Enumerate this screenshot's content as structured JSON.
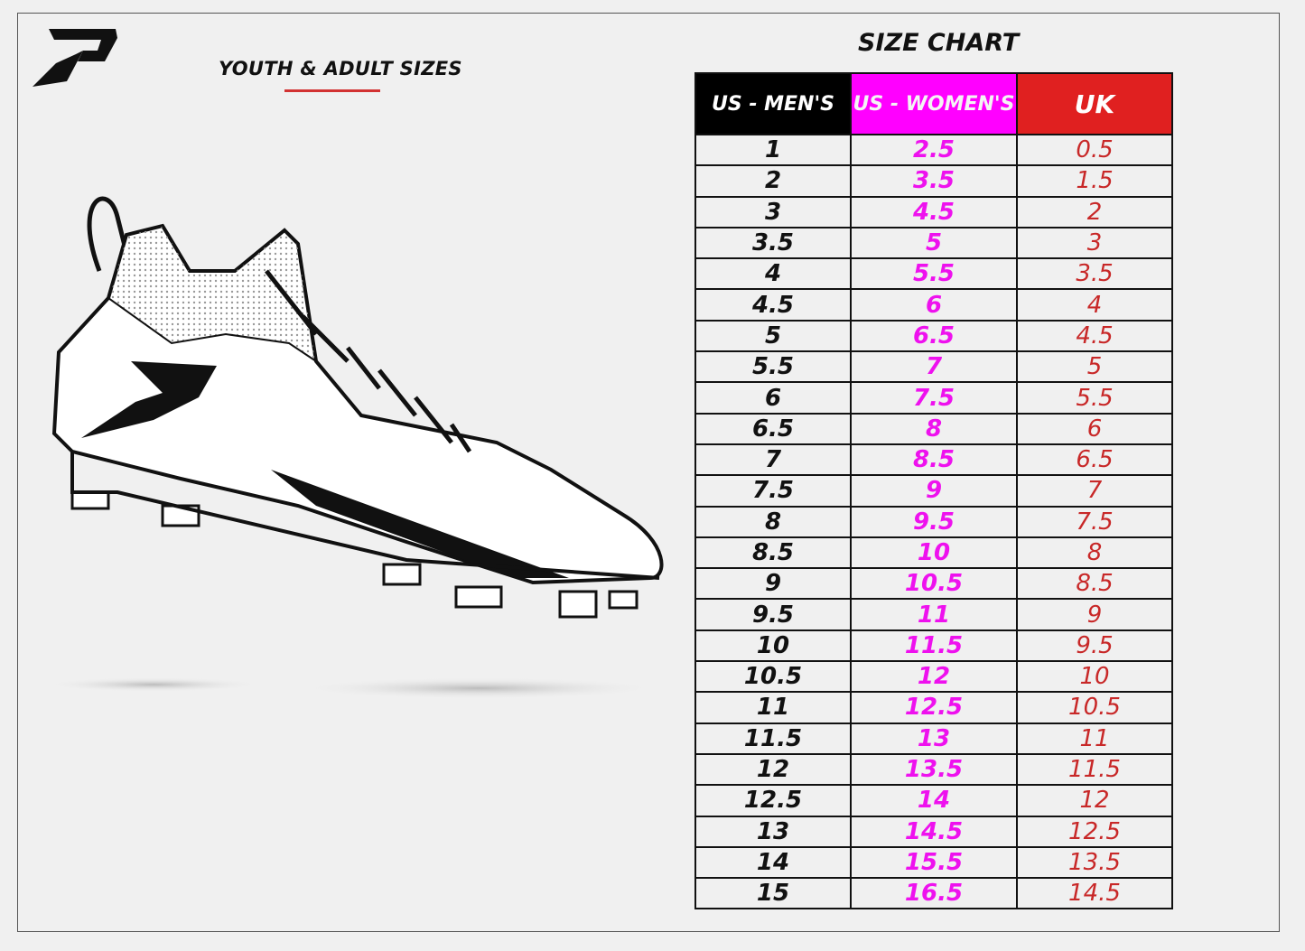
{
  "header": {
    "subtitle": "YOUTH & ADULT SIZES",
    "title": "SIZE CHART"
  },
  "colors": {
    "mens": "#000000",
    "womens": "#ff00ff",
    "uk": "#e02020",
    "accent_line": "#d23232"
  },
  "icons": {
    "logo": "brand-p-logo",
    "illustration": "football-cleat-illustration"
  },
  "table": {
    "headers": [
      "US - MEN'S",
      "US - WOMEN'S",
      "UK"
    ],
    "rows": [
      [
        "1",
        "2.5",
        "0.5"
      ],
      [
        "2",
        "3.5",
        "1.5"
      ],
      [
        "3",
        "4.5",
        "2"
      ],
      [
        "3.5",
        "5",
        "3"
      ],
      [
        "4",
        "5.5",
        "3.5"
      ],
      [
        "4.5",
        "6",
        "4"
      ],
      [
        "5",
        "6.5",
        "4.5"
      ],
      [
        "5.5",
        "7",
        "5"
      ],
      [
        "6",
        "7.5",
        "5.5"
      ],
      [
        "6.5",
        "8",
        "6"
      ],
      [
        "7",
        "8.5",
        "6.5"
      ],
      [
        "7.5",
        "9",
        "7"
      ],
      [
        "8",
        "9.5",
        "7.5"
      ],
      [
        "8.5",
        "10",
        "8"
      ],
      [
        "9",
        "10.5",
        "8.5"
      ],
      [
        "9.5",
        "11",
        "9"
      ],
      [
        "10",
        "11.5",
        "9.5"
      ],
      [
        "10.5",
        "12",
        "10"
      ],
      [
        "11",
        "12.5",
        "10.5"
      ],
      [
        "11.5",
        "13",
        "11"
      ],
      [
        "12",
        "13.5",
        "11.5"
      ],
      [
        "12.5",
        "14",
        "12"
      ],
      [
        "13",
        "14.5",
        "12.5"
      ],
      [
        "14",
        "15.5",
        "13.5"
      ],
      [
        "15",
        "16.5",
        "14.5"
      ]
    ]
  }
}
